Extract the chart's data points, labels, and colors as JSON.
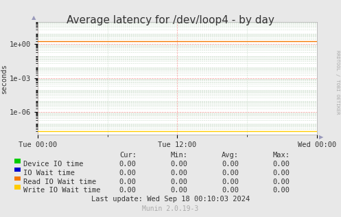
{
  "title": "Average latency for /dev/loop4 - by day",
  "ylabel": "seconds",
  "background_color": "#e8e8e8",
  "plot_bg_color": "#ffffff",
  "grid_color": "#ff9999",
  "grid_minor_color": "#ccddcc",
  "ylim_min": 1e-08,
  "ylim_max": 100.0,
  "yticks": [
    1e-06,
    0.001,
    1.0
  ],
  "ytick_labels": [
    "1e-06",
    "1e-03",
    "1e+00"
  ],
  "xtick_labels": [
    "Tue 00:00",
    "Tue 12:00",
    "Wed 00:00"
  ],
  "legend_items": [
    {
      "label": "Device IO time",
      "color": "#00cc00"
    },
    {
      "label": "IO Wait time",
      "color": "#0000cc"
    },
    {
      "label": "Read IO Wait time",
      "color": "#f57900"
    },
    {
      "label": "Write IO Wait time",
      "color": "#ffcc00"
    }
  ],
  "table_headers": [
    "Cur:",
    "Min:",
    "Avg:",
    "Max:"
  ],
  "table_rows": [
    [
      "0.00",
      "0.00",
      "0.00",
      "0.00"
    ],
    [
      "0.00",
      "0.00",
      "0.00",
      "0.00"
    ],
    [
      "0.00",
      "0.00",
      "0.00",
      "0.00"
    ],
    [
      "0.00",
      "0.00",
      "0.00",
      "0.00"
    ]
  ],
  "last_update": "Last update: Wed Sep 18 00:10:03 2024",
  "munin_version": "Munin 2.0.19-3",
  "rrdtool_text": "RRDTOOL / TOBI OETIKER",
  "arrow_color": "#9999bb",
  "font_color": "#333333",
  "font_size": 7.5,
  "title_font_size": 11
}
